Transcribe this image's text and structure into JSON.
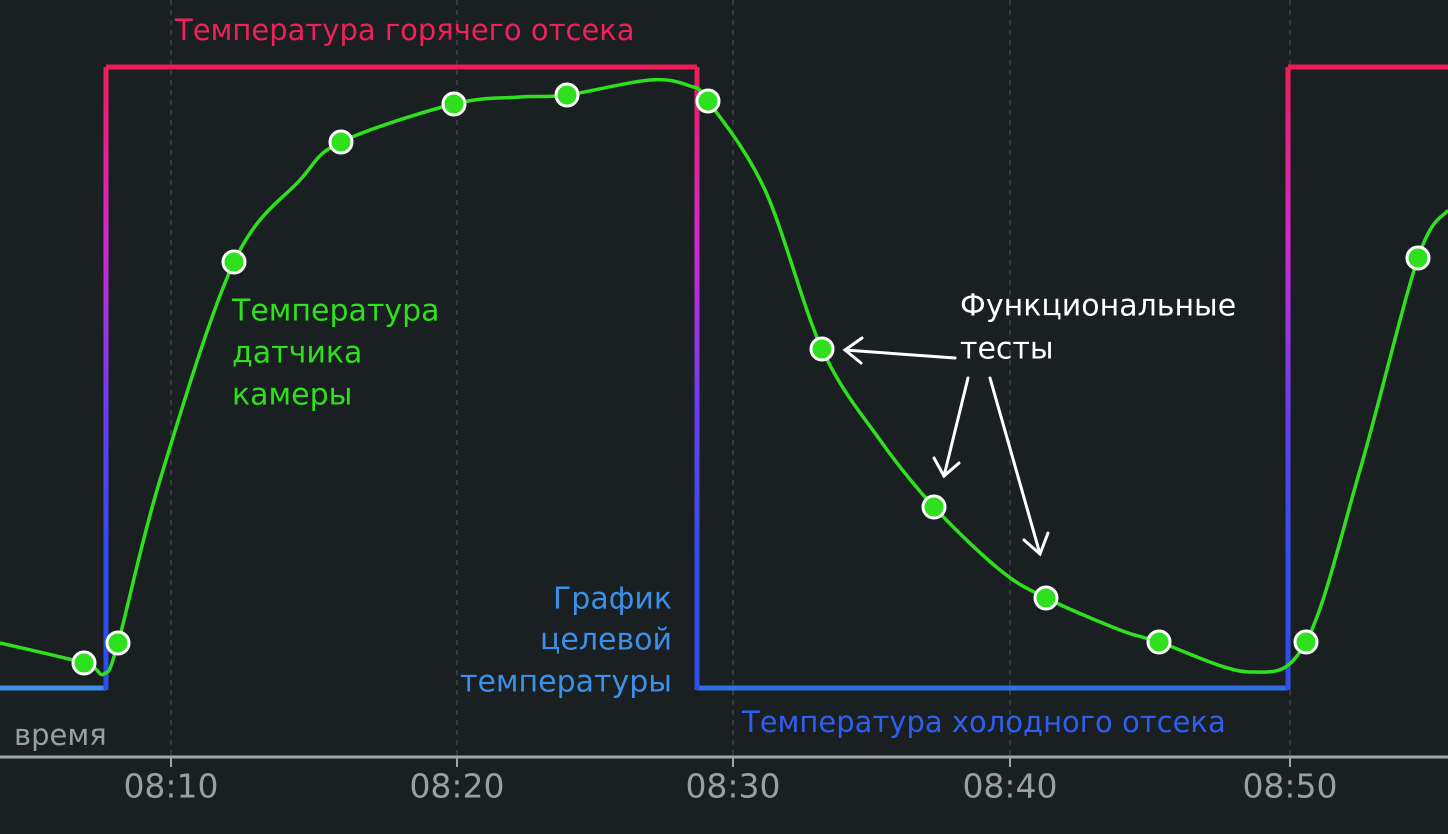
{
  "labels": {
    "hot": "Температура горячего отсека",
    "cold": "Температура холодного отсека",
    "sensor": [
      "Температура",
      "датчика",
      "камеры"
    ],
    "target": [
      "График",
      "целевой",
      "температуры"
    ],
    "tests": [
      "Функциональные",
      "тесты"
    ],
    "axis": "время"
  },
  "axis": {
    "ticks": [
      "08:10",
      "08:20",
      "08:30",
      "08:40",
      "08:50"
    ]
  }
}
